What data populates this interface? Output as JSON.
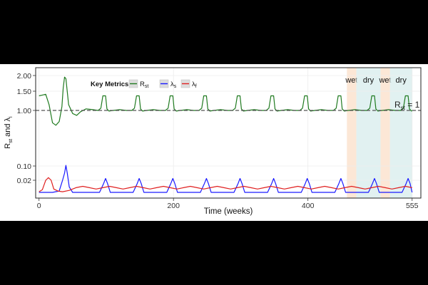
{
  "chart_data": {
    "type": "line",
    "title": "",
    "xlabel": "Time (weeks)",
    "ylabel_main": "R",
    "ylabel_sub1": "st",
    "ylabel_mid": " and λ",
    "ylabel_sub2": "i",
    "xlim": [
      -5,
      568
    ],
    "x_ticks": [
      0,
      200,
      400,
      555
    ],
    "x_tick_labels": [
      "0",
      "200",
      "400",
      "555"
    ],
    "y_ticks": [
      0.02,
      0.1,
      1.0,
      1.5,
      2.0
    ],
    "y_tick_labels": [
      "0.02",
      "0.10",
      "1.00",
      "1.50",
      "2.00"
    ],
    "y_scale": "compressed-log",
    "grid": true,
    "legend": {
      "title": "Key Metrics",
      "placement": "top-left-inside",
      "entries": [
        {
          "main": "R",
          "sub": "st",
          "color": "#1f7a1f"
        },
        {
          "main": "λ",
          "sub": "s",
          "color": "#1a1aff"
        },
        {
          "main": "λ",
          "sub": "f",
          "color": "#e02020"
        }
      ]
    },
    "reference_line": {
      "y": 1.0,
      "label_main": "R",
      "label_sub": "st",
      "label_suffix": " = 1",
      "style": "dashed",
      "color": "#555555"
    },
    "season_bands": [
      {
        "label": "wet",
        "x0": 458,
        "x1": 472,
        "color": "#fbe3cf"
      },
      {
        "label": "dry",
        "x0": 472,
        "x1": 508,
        "color": "#dcefef"
      },
      {
        "label": "wet",
        "x0": 508,
        "x1": 522,
        "color": "#fbe3cf"
      },
      {
        "label": "dry",
        "x0": 522,
        "x1": 555,
        "color": "#dcefef"
      }
    ],
    "series": [
      {
        "key": "Rst",
        "color": "#1f7a1f",
        "x": [
          0,
          5,
          10,
          15,
          20,
          25,
          30,
          34,
          36,
          38,
          40,
          44,
          50,
          56,
          62,
          70,
          80,
          88,
          92,
          95,
          99,
          101,
          104,
          110,
          120,
          130,
          138,
          142,
          145,
          149,
          151,
          154,
          160,
          170,
          180,
          188,
          192,
          195,
          199,
          201,
          204,
          210,
          220,
          230,
          238,
          242,
          245,
          249,
          251,
          254,
          260,
          270,
          280,
          288,
          292,
          295,
          299,
          301,
          304,
          310,
          320,
          330,
          338,
          342,
          345,
          349,
          351,
          354,
          360,
          370,
          380,
          388,
          392,
          395,
          399,
          401,
          404,
          410,
          420,
          430,
          438,
          442,
          445,
          449,
          451,
          454,
          460,
          470,
          480,
          488,
          492,
          495,
          499,
          501,
          504,
          510,
          520,
          530,
          538,
          542,
          545,
          549,
          551,
          554,
          555
        ],
        "y": [
          1.38,
          1.4,
          1.42,
          1.15,
          0.8,
          0.76,
          0.82,
          1.1,
          1.6,
          1.95,
          1.9,
          1.15,
          0.95,
          0.92,
          0.98,
          1.04,
          1.02,
          1.0,
          1.06,
          1.38,
          1.38,
          1.04,
          0.99,
          1.0,
          1.02,
          1.0,
          1.0,
          1.06,
          1.38,
          1.38,
          1.04,
          0.99,
          1.0,
          1.02,
          1.0,
          1.0,
          1.06,
          1.38,
          1.38,
          1.04,
          0.99,
          1.0,
          1.02,
          1.0,
          1.0,
          1.06,
          1.38,
          1.38,
          1.04,
          0.99,
          1.0,
          1.02,
          1.0,
          1.0,
          1.06,
          1.38,
          1.38,
          1.04,
          0.99,
          1.0,
          1.02,
          1.0,
          1.0,
          1.06,
          1.38,
          1.38,
          1.04,
          0.99,
          1.0,
          1.02,
          1.0,
          1.0,
          1.06,
          1.38,
          1.38,
          1.04,
          0.99,
          1.0,
          1.02,
          1.0,
          1.0,
          1.06,
          1.38,
          1.38,
          1.04,
          0.99,
          1.0,
          1.02,
          1.0,
          1.0,
          1.06,
          1.38,
          1.38,
          1.04,
          0.99,
          1.0,
          1.02,
          1.0,
          1.0,
          1.06,
          1.38,
          1.38,
          1.04,
          0.99,
          1.0
        ]
      },
      {
        "key": "lambda_s",
        "color": "#1a1aff",
        "x": [
          0,
          20,
          30,
          35,
          38,
          40,
          42,
          45,
          50,
          90,
          96,
          99,
          102,
          106,
          140,
          146,
          149,
          152,
          156,
          190,
          196,
          199,
          202,
          206,
          240,
          246,
          249,
          252,
          256,
          290,
          296,
          299,
          302,
          306,
          340,
          346,
          349,
          352,
          356,
          390,
          396,
          399,
          402,
          406,
          440,
          446,
          449,
          452,
          456,
          490,
          496,
          499,
          502,
          506,
          540,
          546,
          549,
          552,
          555
        ],
        "y": [
          0.002,
          0.002,
          0.004,
          0.02,
          0.06,
          0.11,
          0.06,
          0.01,
          0.002,
          0.002,
          0.015,
          0.03,
          0.015,
          0.002,
          0.002,
          0.015,
          0.03,
          0.015,
          0.002,
          0.002,
          0.015,
          0.03,
          0.015,
          0.002,
          0.002,
          0.015,
          0.03,
          0.015,
          0.002,
          0.002,
          0.015,
          0.03,
          0.015,
          0.002,
          0.002,
          0.015,
          0.03,
          0.015,
          0.002,
          0.002,
          0.015,
          0.03,
          0.015,
          0.002,
          0.002,
          0.015,
          0.03,
          0.015,
          0.002,
          0.002,
          0.015,
          0.03,
          0.015,
          0.002,
          0.002,
          0.015,
          0.03,
          0.015,
          0.002
        ]
      },
      {
        "key": "lambda_f",
        "color": "#e02020",
        "x": [
          0,
          5,
          10,
          14,
          18,
          22,
          28,
          35,
          45,
          55,
          65,
          75,
          85,
          95,
          105,
          115,
          125,
          135,
          145,
          155,
          165,
          175,
          185,
          195,
          205,
          215,
          225,
          235,
          245,
          255,
          265,
          275,
          285,
          295,
          305,
          315,
          325,
          335,
          345,
          355,
          365,
          375,
          385,
          395,
          405,
          415,
          425,
          435,
          445,
          455,
          465,
          475,
          485,
          495,
          505,
          515,
          525,
          535,
          545,
          555
        ],
        "y": [
          0.003,
          0.006,
          0.02,
          0.035,
          0.02,
          0.007,
          0.004,
          0.003,
          0.005,
          0.009,
          0.011,
          0.009,
          0.007,
          0.009,
          0.011,
          0.009,
          0.007,
          0.009,
          0.011,
          0.009,
          0.007,
          0.009,
          0.011,
          0.009,
          0.007,
          0.009,
          0.011,
          0.009,
          0.007,
          0.009,
          0.011,
          0.009,
          0.007,
          0.009,
          0.011,
          0.009,
          0.007,
          0.009,
          0.011,
          0.009,
          0.007,
          0.009,
          0.011,
          0.009,
          0.007,
          0.009,
          0.011,
          0.009,
          0.007,
          0.009,
          0.011,
          0.009,
          0.007,
          0.009,
          0.011,
          0.009,
          0.007,
          0.009,
          0.011,
          0.009
        ]
      }
    ]
  }
}
